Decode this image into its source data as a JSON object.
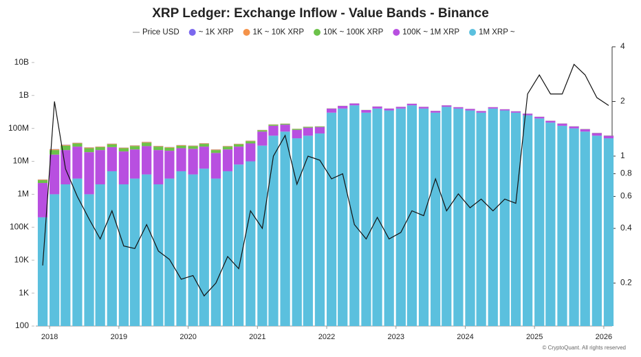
{
  "chart_data": {
    "type": "stacked-bar-line",
    "title": "XRP Ledger: Exchange Inflow - Value Bands - Binance",
    "footer": "© CryptoQuant. All rights reserved",
    "x": [
      2017.9,
      2018.07,
      2018.23,
      2018.4,
      2018.57,
      2018.73,
      2018.9,
      2019.07,
      2019.23,
      2019.4,
      2019.57,
      2019.73,
      2019.9,
      2020.07,
      2020.23,
      2020.4,
      2020.57,
      2020.73,
      2020.9,
      2021.07,
      2021.23,
      2021.4,
      2021.57,
      2021.73,
      2021.9,
      2022.07,
      2022.23,
      2022.4,
      2022.57,
      2022.73,
      2022.9,
      2023.07,
      2023.23,
      2023.4,
      2023.57,
      2023.73,
      2023.9,
      2024.07,
      2024.23,
      2024.4,
      2024.57,
      2024.73,
      2024.9,
      2025.07,
      2025.23,
      2025.4,
      2025.57,
      2025.73,
      2025.9,
      2026.07
    ],
    "xlim": [
      2017.8,
      2026.12
    ],
    "xticks": [
      2018,
      2019,
      2020,
      2021,
      2022,
      2023,
      2024,
      2025,
      2026
    ],
    "ylim": [
      100,
      30000000000
    ],
    "yticks": [
      100,
      {
        "value": 1000,
        "label": "1K"
      },
      {
        "value": 10000,
        "label": "10K"
      },
      {
        "value": 100000,
        "label": "100K"
      },
      {
        "value": 1000000,
        "label": "1M"
      },
      {
        "value": 10000000,
        "label": "10M"
      },
      {
        "value": 100000000,
        "label": "100M"
      },
      {
        "value": 1000000000,
        "label": "1B"
      },
      {
        "value": 10000000000,
        "label": "10B"
      }
    ],
    "y2lim": [
      0.116,
      4
    ],
    "y2ticks": [
      0.2,
      0.4,
      0.6,
      0.8,
      1,
      2,
      4
    ],
    "log_scale": true,
    "series": [
      {
        "name": "Price USD",
        "color": "#111111",
        "axis": "y2",
        "values": [
          0.25,
          2.0,
          0.85,
          0.6,
          0.45,
          0.35,
          0.5,
          0.32,
          0.31,
          0.42,
          0.3,
          0.27,
          0.21,
          0.22,
          0.17,
          0.2,
          0.28,
          0.24,
          0.5,
          0.4,
          1.0,
          1.3,
          0.7,
          1.0,
          0.95,
          0.75,
          0.8,
          0.42,
          0.35,
          0.46,
          0.35,
          0.38,
          0.5,
          0.47,
          0.75,
          0.5,
          0.62,
          0.52,
          0.58,
          0.5,
          0.58,
          0.55,
          2.2,
          2.8,
          2.2,
          2.2,
          3.2,
          2.8,
          2.1,
          1.9
        ]
      },
      {
        "name": "~ 1K XRP",
        "color": "#7b68ee",
        "values": [
          20000,
          300000,
          400000,
          350000,
          300000,
          250000,
          300000,
          250000,
          300000,
          400000,
          300000,
          250000,
          250000,
          250000,
          300000,
          200000,
          250000,
          250000,
          300000,
          400000,
          500000,
          400000,
          300000,
          300000,
          250000,
          250000,
          200000,
          150000,
          150000,
          150000,
          120000,
          120000,
          150000,
          120000,
          100000,
          120000,
          100000,
          100000,
          100000,
          100000,
          90000,
          90000,
          80000,
          80000,
          60000,
          60000,
          50000,
          50000,
          40000,
          40000
        ]
      },
      {
        "name": "1K ~ 10K XRP",
        "color": "#f4934a",
        "values": [
          100000,
          1200000,
          1600000,
          1400000,
          1200000,
          1000000,
          1200000,
          1000000,
          1200000,
          1600000,
          1200000,
          1000000,
          1000000,
          1000000,
          1200000,
          800000,
          1000000,
          1000000,
          1200000,
          1600000,
          2000000,
          1600000,
          1200000,
          1200000,
          1000000,
          1000000,
          800000,
          600000,
          600000,
          600000,
          500000,
          500000,
          600000,
          500000,
          400000,
          500000,
          400000,
          400000,
          400000,
          400000,
          360000,
          360000,
          300000,
          300000,
          240000,
          240000,
          200000,
          200000,
          160000,
          160000
        ]
      },
      {
        "name": "10K ~ 100K XRP",
        "color": "#6cc24a",
        "values": [
          500000,
          6000000,
          8000000,
          7000000,
          6000000,
          5000000,
          6000000,
          5000000,
          6000000,
          8000000,
          6000000,
          5000000,
          5000000,
          5000000,
          6000000,
          4000000,
          5000000,
          5000000,
          6000000,
          8000000,
          10000000,
          8000000,
          6000000,
          6000000,
          5000000,
          5000000,
          4000000,
          3000000,
          3000000,
          3000000,
          2500000,
          2500000,
          3000000,
          2500000,
          2000000,
          2500000,
          2000000,
          2000000,
          2000000,
          2000000,
          1800000,
          1800000,
          1500000,
          1500000,
          1200000,
          1200000,
          1000000,
          1000000,
          800000,
          800000
        ]
      },
      {
        "name": "100K ~ 1M XRP",
        "color": "#b84fe0",
        "values": [
          2000000,
          15000000,
          20000000,
          25000000,
          18000000,
          20000000,
          22000000,
          18000000,
          20000000,
          25000000,
          20000000,
          18000000,
          20000000,
          20000000,
          22000000,
          15000000,
          18000000,
          20000000,
          25000000,
          50000000,
          60000000,
          50000000,
          40000000,
          45000000,
          40000000,
          100000000,
          80000000,
          70000000,
          60000000,
          60000000,
          50000000,
          50000000,
          60000000,
          50000000,
          40000000,
          50000000,
          40000000,
          40000000,
          35000000,
          40000000,
          30000000,
          30000000,
          30000000,
          25000000,
          20000000,
          20000000,
          15000000,
          15000000,
          12000000,
          10000000
        ]
      },
      {
        "name": "1M XRP ~",
        "color": "#5bc0de",
        "values": [
          200000,
          1000000,
          2000000,
          3000000,
          1000000,
          2000000,
          5000000,
          2000000,
          3000000,
          4000000,
          2000000,
          3000000,
          5000000,
          4000000,
          6000000,
          3000000,
          5000000,
          8000000,
          10000000,
          30000000,
          60000000,
          80000000,
          50000000,
          60000000,
          70000000,
          300000000,
          400000000,
          500000000,
          300000000,
          400000000,
          350000000,
          400000000,
          500000000,
          400000000,
          300000000,
          450000000,
          400000000,
          350000000,
          300000000,
          400000000,
          350000000,
          300000000,
          250000000,
          200000000,
          150000000,
          120000000,
          100000000,
          80000000,
          60000000,
          50000000
        ]
      }
    ]
  }
}
